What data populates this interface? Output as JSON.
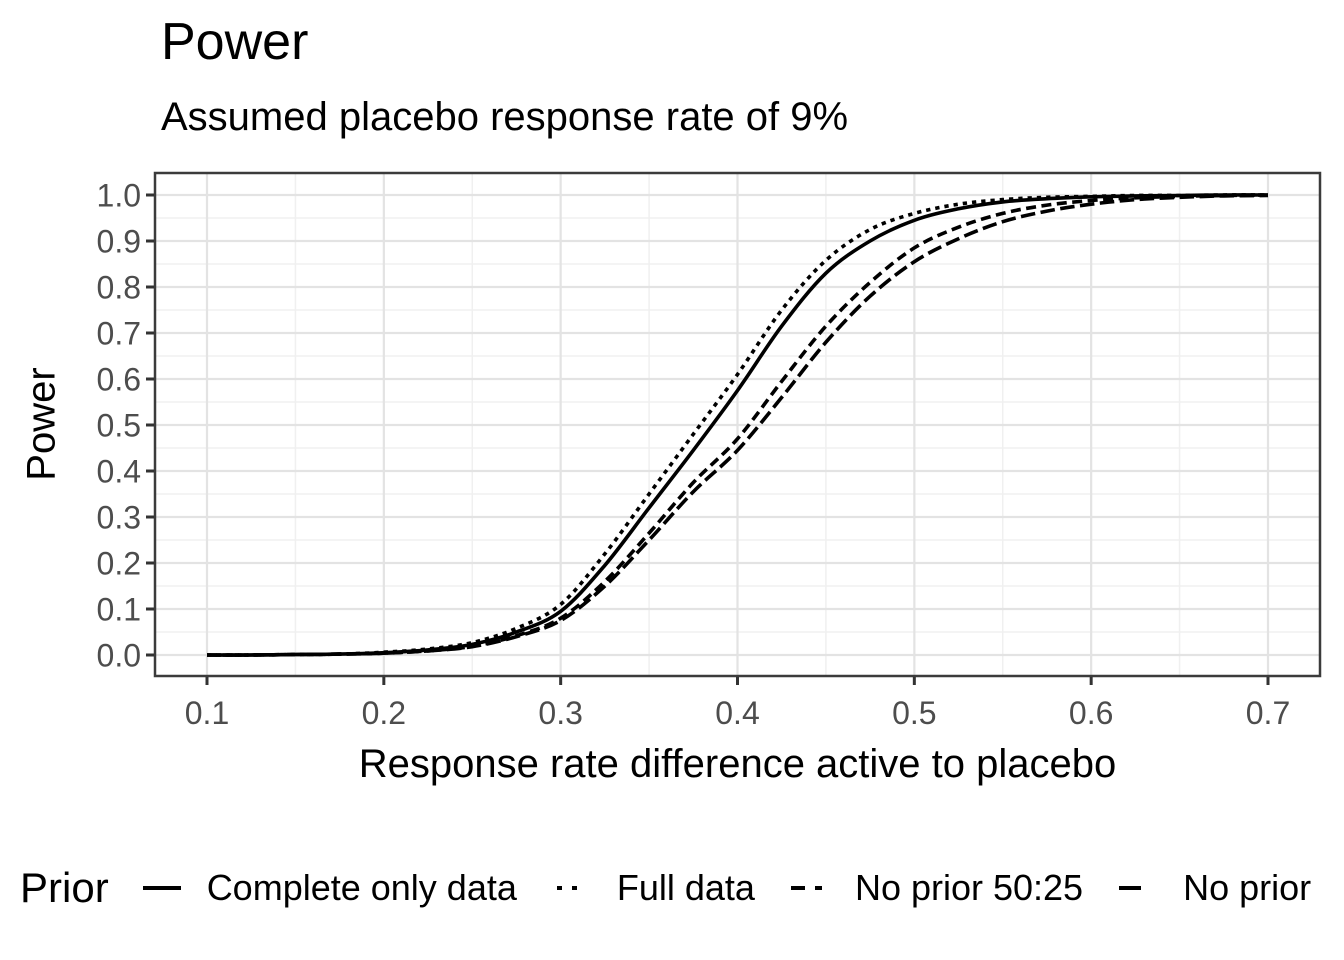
{
  "title": "Power",
  "subtitle": "Assumed placebo response rate of 9%",
  "legend": {
    "title": "Prior",
    "items": [
      {
        "label": "Complete only data",
        "linetype": "solid"
      },
      {
        "label": "Full data",
        "linetype": "dotted"
      },
      {
        "label": "No prior 50:25",
        "linetype": "dashed"
      },
      {
        "label": "No prior",
        "linetype": "longdash"
      }
    ]
  },
  "chart_data": {
    "type": "line",
    "title": "Power",
    "subtitle": "Assumed placebo response rate of 9%",
    "xlabel": "Response rate difference active to placebo",
    "ylabel": "Power",
    "xlim": [
      0.07,
      0.73
    ],
    "ylim": [
      -0.05,
      1.05
    ],
    "grid": "major and minor, light gray on white, dark panel border",
    "legend_position": "bottom",
    "legend_title": "Prior",
    "x_ticks": [
      0.1,
      0.2,
      0.3,
      0.4,
      0.5,
      0.6,
      0.7
    ],
    "x_tick_labels": [
      "0.1",
      "0.2",
      "0.3",
      "0.4",
      "0.5",
      "0.6",
      "0.7"
    ],
    "y_ticks": [
      0.0,
      0.1,
      0.2,
      0.3,
      0.4,
      0.5,
      0.6,
      0.7,
      0.8,
      0.9,
      1.0
    ],
    "y_tick_labels": [
      "0.0",
      "0.1",
      "0.2",
      "0.3",
      "0.4",
      "0.5",
      "0.6",
      "0.7",
      "0.8",
      "0.9",
      "1.0"
    ],
    "x_minor": [
      0.15,
      0.25,
      0.35,
      0.45,
      0.55,
      0.65
    ],
    "y_minor": [
      -0.05,
      0.05,
      0.15,
      0.25,
      0.35,
      0.45,
      0.55,
      0.65,
      0.75,
      0.85,
      0.95,
      1.05
    ],
    "x": [
      0.1,
      0.125,
      0.15,
      0.175,
      0.2,
      0.225,
      0.25,
      0.275,
      0.3,
      0.325,
      0.35,
      0.375,
      0.4,
      0.425,
      0.45,
      0.475,
      0.5,
      0.525,
      0.55,
      0.575,
      0.6,
      0.625,
      0.65,
      0.675,
      0.7
    ],
    "series": [
      {
        "name": "Complete only data",
        "linetype": "solid",
        "values": [
          0.0,
          0.0,
          0.001,
          0.002,
          0.005,
          0.011,
          0.023,
          0.05,
          0.095,
          0.195,
          0.32,
          0.445,
          0.575,
          0.715,
          0.83,
          0.9,
          0.945,
          0.97,
          0.985,
          0.992,
          0.996,
          0.998,
          0.999,
          1.0,
          1.0
        ]
      },
      {
        "name": "Full data",
        "linetype": "dotted",
        "values": [
          0.0,
          0.0,
          0.001,
          0.002,
          0.006,
          0.013,
          0.027,
          0.058,
          0.11,
          0.22,
          0.35,
          0.48,
          0.61,
          0.75,
          0.858,
          0.925,
          0.96,
          0.98,
          0.99,
          0.995,
          0.997,
          0.999,
          0.999,
          1.0,
          1.0
        ]
      },
      {
        "name": "No prior 50:25",
        "linetype": "dashed",
        "values": [
          0.0,
          0.0,
          0.001,
          0.002,
          0.004,
          0.009,
          0.019,
          0.042,
          0.08,
          0.16,
          0.265,
          0.375,
          0.47,
          0.595,
          0.715,
          0.81,
          0.885,
          0.93,
          0.96,
          0.978,
          0.988,
          0.994,
          0.997,
          0.999,
          1.0
        ]
      },
      {
        "name": "No prior",
        "linetype": "longdash",
        "values": [
          0.0,
          0.0,
          0.001,
          0.002,
          0.004,
          0.009,
          0.018,
          0.04,
          0.075,
          0.15,
          0.25,
          0.355,
          0.445,
          0.56,
          0.68,
          0.78,
          0.855,
          0.905,
          0.942,
          0.965,
          0.98,
          0.99,
          0.995,
          0.998,
          0.999
        ]
      }
    ],
    "colors": {
      "line": "#000000",
      "axis_text": "#4d4d4d",
      "grid_major": "#e3e3e3",
      "grid_minor": "#f0f0f0",
      "panel_border": "#3b3b3b",
      "background": "#ffffff"
    }
  }
}
